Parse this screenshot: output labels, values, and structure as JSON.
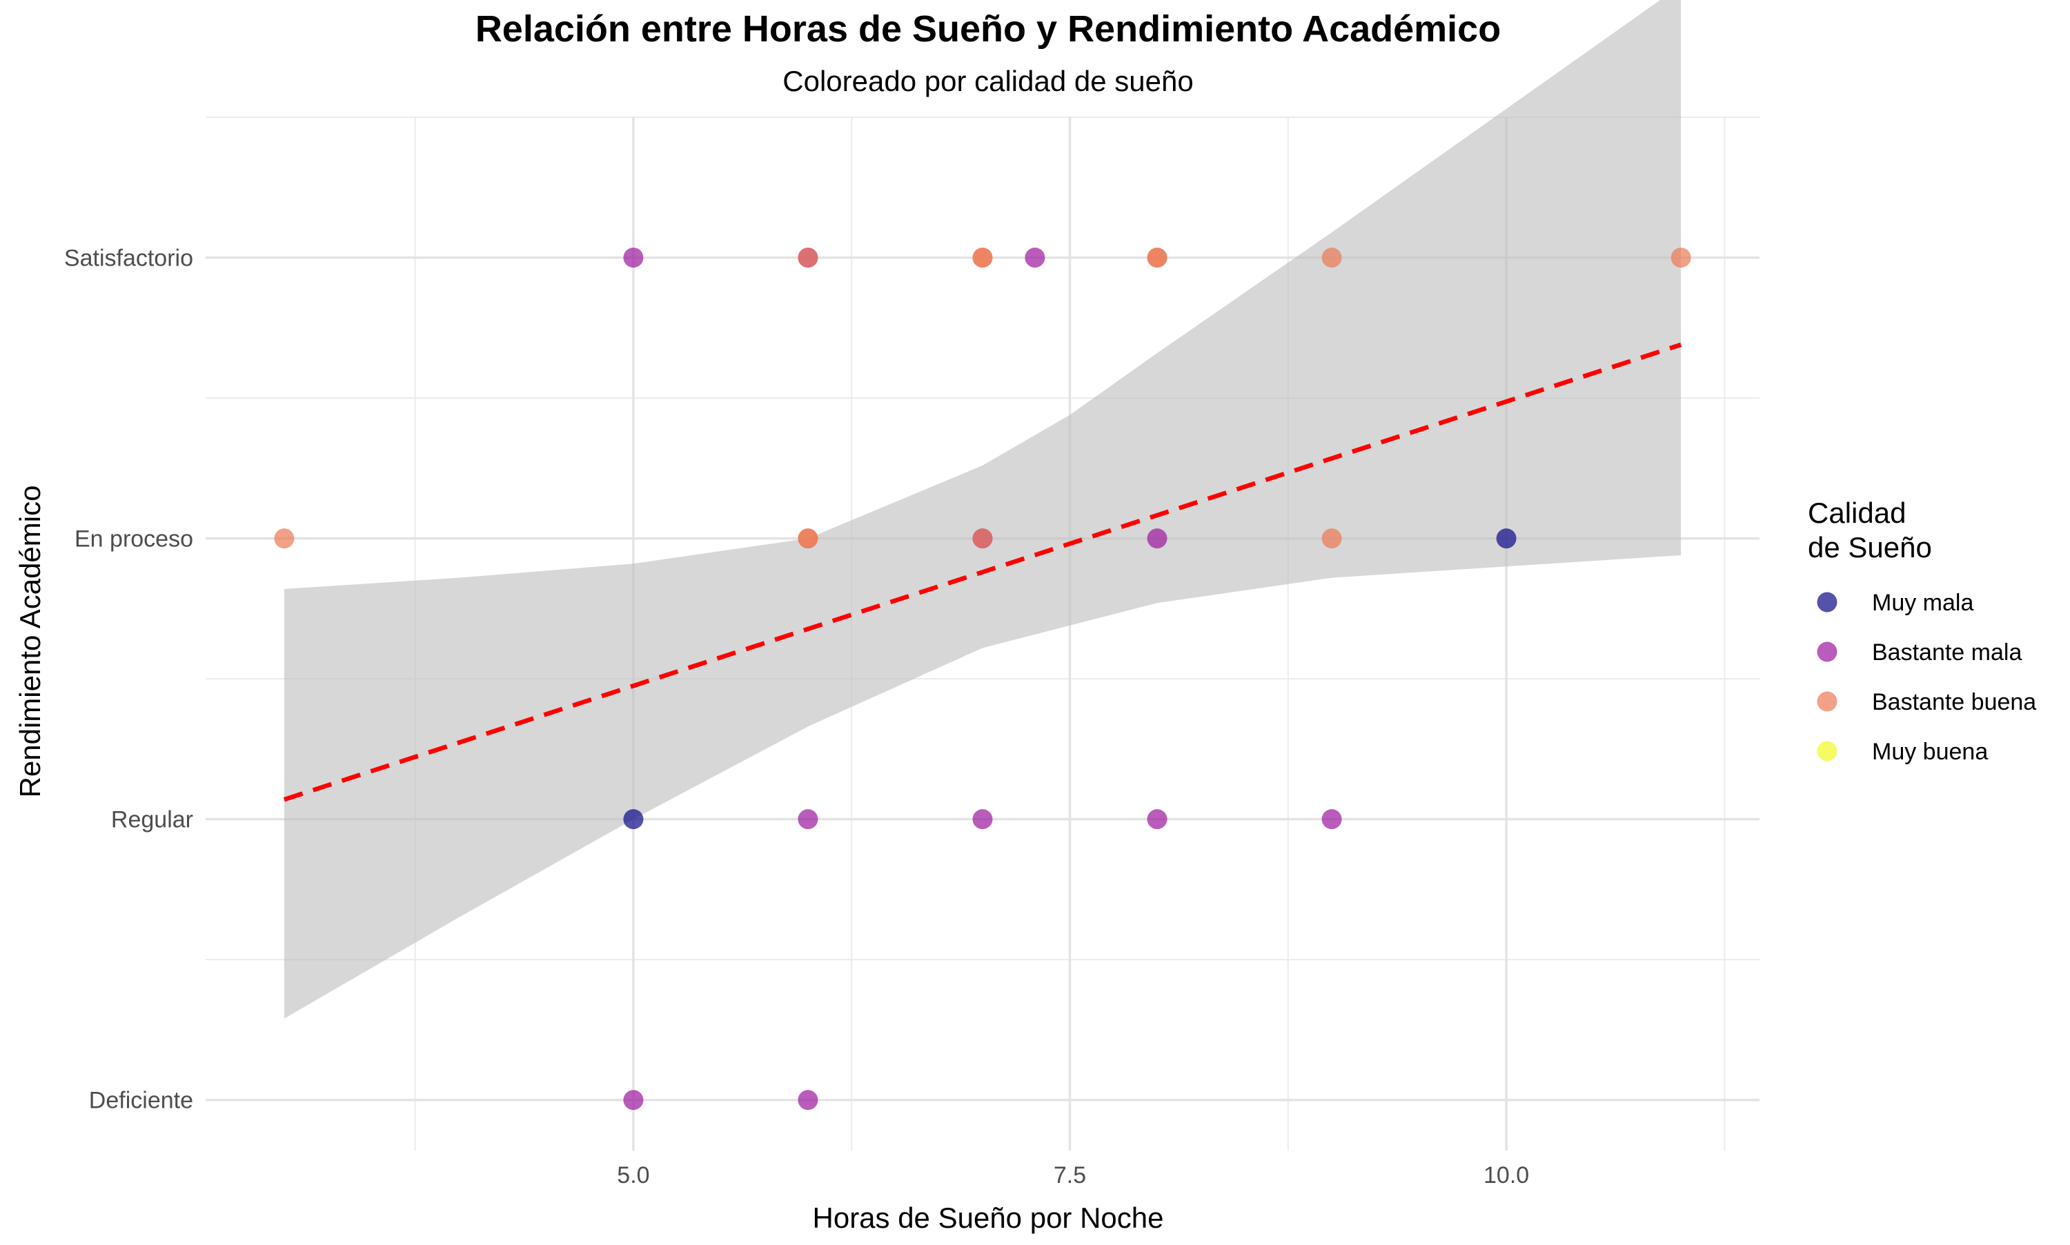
{
  "chart_data": {
    "type": "scatter",
    "title": "Relación entre Horas de Sueño y Rendimiento Académico",
    "subtitle": "Coloreado por calidad de sueño",
    "xlabel": "Horas de Sueño por Noche",
    "ylabel": "Rendimiento Académico",
    "xlim": [
      2.55,
      11.45
    ],
    "ylim": [
      0.82,
      4.5
    ],
    "x_ticks": [
      {
        "value": 5.0,
        "label": "5.0"
      },
      {
        "value": 7.5,
        "label": "7.5"
      },
      {
        "value": 10.0,
        "label": "10.0"
      }
    ],
    "x_minor_ticks": [
      3.75,
      6.25,
      8.75,
      11.25
    ],
    "y_ticks": [
      {
        "value": 1,
        "label": "Deficiente"
      },
      {
        "value": 2,
        "label": "Regular"
      },
      {
        "value": 3,
        "label": "En proceso"
      },
      {
        "value": 4,
        "label": "Satisfactorio"
      }
    ],
    "y_minor_ticks": [
      1.5,
      2.5,
      3.5,
      4.5
    ],
    "grid": true,
    "legend": {
      "title_lines": [
        "Calidad",
        "de Sueño"
      ],
      "position": "right",
      "entries": [
        {
          "label": "Muy mala",
          "color": "#0d0887"
        },
        {
          "label": "Bastante mala",
          "color": "#9c179e"
        },
        {
          "label": "Bastante buena",
          "color": "#ed7953"
        },
        {
          "label": "Muy buena",
          "color": "#f0f921"
        }
      ]
    },
    "trend_line": {
      "method": "linear",
      "color": "#ff0000",
      "style": "dashed",
      "x": [
        3,
        11
      ],
      "y": [
        2.07,
        3.69
      ]
    },
    "confidence_band": {
      "color": "#bebebe",
      "x": [
        3,
        4,
        5,
        6,
        7,
        7.5,
        8,
        9,
        10,
        11
      ],
      "upper": [
        2.82,
        2.86,
        2.91,
        3.0,
        3.26,
        3.44,
        3.66,
        4.09,
        4.53,
        4.97
      ],
      "lower": [
        1.29,
        1.65,
        2.0,
        2.33,
        2.61,
        2.69,
        2.77,
        2.86,
        2.9,
        2.94
      ]
    },
    "series": [
      {
        "name": "Muy mala",
        "color": "#0d0887",
        "points": [
          {
            "x": 5,
            "y": 2
          },
          {
            "x": 10,
            "y": 3
          }
        ]
      },
      {
        "name": "Bastante mala",
        "color": "#9c179e",
        "points": [
          {
            "x": 5,
            "y": 4
          },
          {
            "x": 7.3,
            "y": 4
          },
          {
            "x": 5,
            "y": 1
          },
          {
            "x": 6,
            "y": 1
          },
          {
            "x": 6,
            "y": 2
          },
          {
            "x": 7,
            "y": 2
          },
          {
            "x": 8,
            "y": 2
          },
          {
            "x": 9,
            "y": 2
          },
          {
            "x": 8,
            "y": 3
          },
          {
            "x": 6,
            "y": 4
          },
          {
            "x": 7,
            "y": 3
          }
        ]
      },
      {
        "name": "Bastante buena",
        "color": "#ed7953",
        "points": [
          {
            "x": 3,
            "y": 3
          },
          {
            "x": 6,
            "y": 3
          },
          {
            "x": 7,
            "y": 4
          },
          {
            "x": 8,
            "y": 4
          },
          {
            "x": 9,
            "y": 4
          },
          {
            "x": 11,
            "y": 4
          },
          {
            "x": 9,
            "y": 3
          },
          {
            "x": 7,
            "y": 3
          },
          {
            "x": 6,
            "y": 4
          },
          {
            "x": 6,
            "y": 3
          },
          {
            "x": 7,
            "y": 4
          },
          {
            "x": 8,
            "y": 4
          }
        ]
      },
      {
        "name": "Muy buena",
        "color": "#f0f921",
        "points": []
      }
    ]
  }
}
